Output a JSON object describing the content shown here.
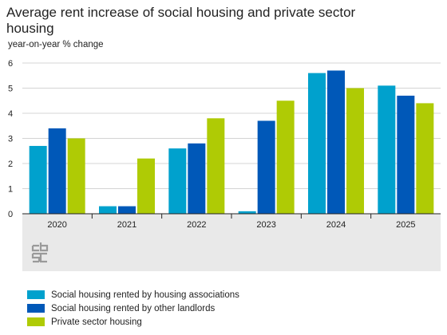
{
  "chart_data": {
    "type": "bar",
    "title": "Average rent increase of social housing and private sector housing",
    "ylabel": "year-on-year % change",
    "xlabel": "",
    "categories": [
      "2020",
      "2021",
      "2022",
      "2023",
      "2024",
      "2025"
    ],
    "ylim": [
      0,
      6
    ],
    "yticks": [
      "0",
      "1",
      "2",
      "3",
      "4",
      "5",
      "6"
    ],
    "series": [
      {
        "name": "Social housing rented by housing associations",
        "color": "#00a1cd",
        "values": [
          2.7,
          0.3,
          2.6,
          0.1,
          5.6,
          5.1
        ]
      },
      {
        "name": "Social housing rented by other landlords",
        "color": "#0058b8",
        "values": [
          3.4,
          0.3,
          2.8,
          3.7,
          5.7,
          4.7
        ]
      },
      {
        "name": "Private sector housing",
        "color": "#afcb05",
        "values": [
          3.0,
          2.2,
          3.8,
          4.5,
          5.0,
          4.4
        ]
      }
    ],
    "grid": true,
    "legend_position": "bottom"
  },
  "logo": {
    "name": "cbs-logo-icon",
    "text": "cbs"
  }
}
